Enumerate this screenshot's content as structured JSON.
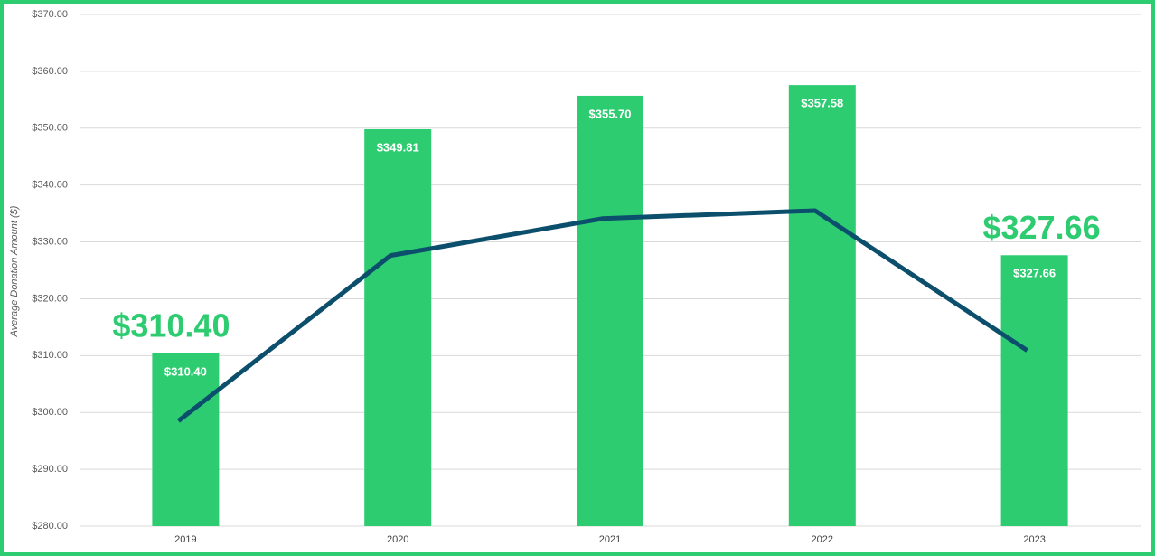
{
  "chart_data": {
    "type": "bar",
    "y_axis_label": "Average Donation Amount ($)",
    "categories": [
      "2019",
      "2020",
      "2021",
      "2022",
      "2023"
    ],
    "series": [
      {
        "type": "bar",
        "color": "#2ecc71",
        "values": [
          310.4,
          349.81,
          355.7,
          357.58,
          327.66
        ],
        "value_labels": [
          "$310.40",
          "$349.81",
          "$355.70",
          "$357.58",
          "$327.66"
        ]
      },
      {
        "type": "line",
        "color": "#0b4f6c",
        "values": [
          298.5,
          327.6,
          334.1,
          335.5,
          310.9
        ]
      }
    ],
    "annotations": [
      "$310.40",
      "$327.66"
    ],
    "annotation_color": "#2ecc71",
    "ylim": [
      280,
      370
    ],
    "yticks": [
      {
        "value": 280,
        "label": "$280.00"
      },
      {
        "value": 290,
        "label": "$290.00"
      },
      {
        "value": 300,
        "label": "$300.00"
      },
      {
        "value": 310,
        "label": "$310.00"
      },
      {
        "value": 320,
        "label": "$320.00"
      },
      {
        "value": 330,
        "label": "$330.00"
      },
      {
        "value": 340,
        "label": "$340.00"
      },
      {
        "value": 350,
        "label": "$350.00"
      },
      {
        "value": 360,
        "label": "$360.00"
      },
      {
        "value": 370,
        "label": "$370.00"
      }
    ],
    "grid": true
  }
}
